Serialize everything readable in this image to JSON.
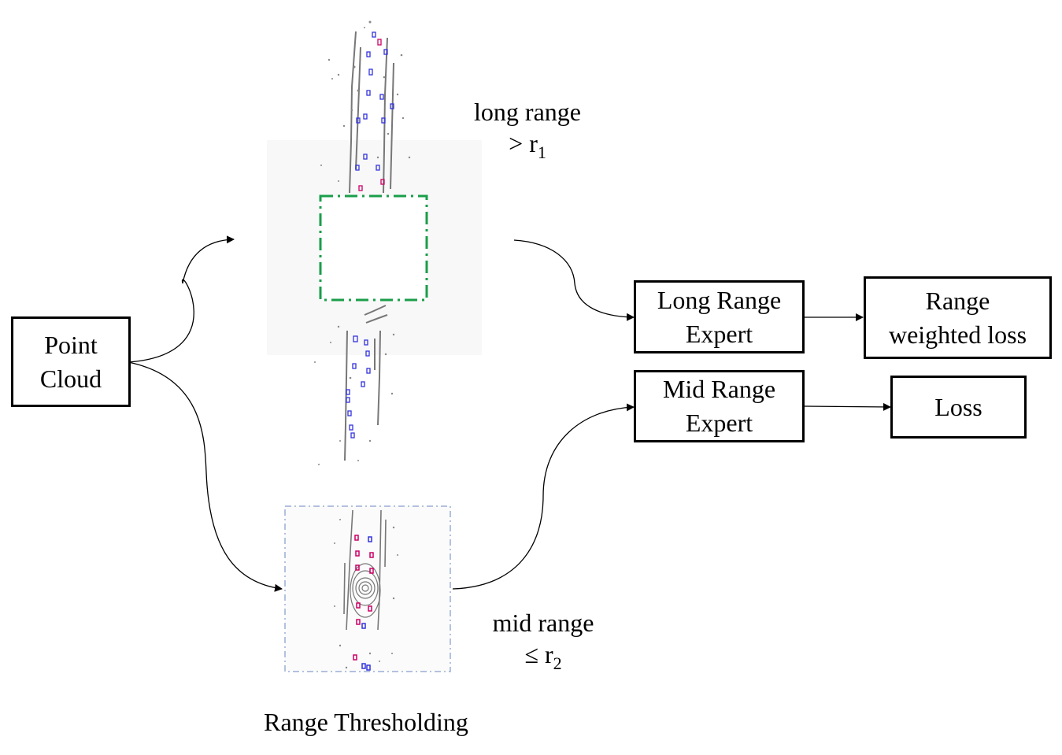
{
  "boxes": {
    "point_cloud": [
      "Point",
      "Cloud"
    ],
    "long_range_expert": [
      "Long Range",
      "Expert"
    ],
    "mid_range_expert": [
      "Mid Range",
      "Expert"
    ],
    "range_weighted_loss": [
      "Range",
      "weighted loss"
    ],
    "loss": "Loss"
  },
  "labels": {
    "long_range": {
      "line1": "long range",
      "symbol": ">",
      "var": "r",
      "sub": "1"
    },
    "mid_range": {
      "line1": "mid range",
      "symbol": "≤",
      "var": "r",
      "sub": "2"
    },
    "range_thresholding": "Range Thresholding"
  },
  "colors": {
    "lidar_points": "#777777",
    "boxes_blue": "#3333dd",
    "boxes_magenta": "#cc0066",
    "long_range_crop": "#1a9e4a",
    "mid_range_crop": "#9aaed6"
  }
}
